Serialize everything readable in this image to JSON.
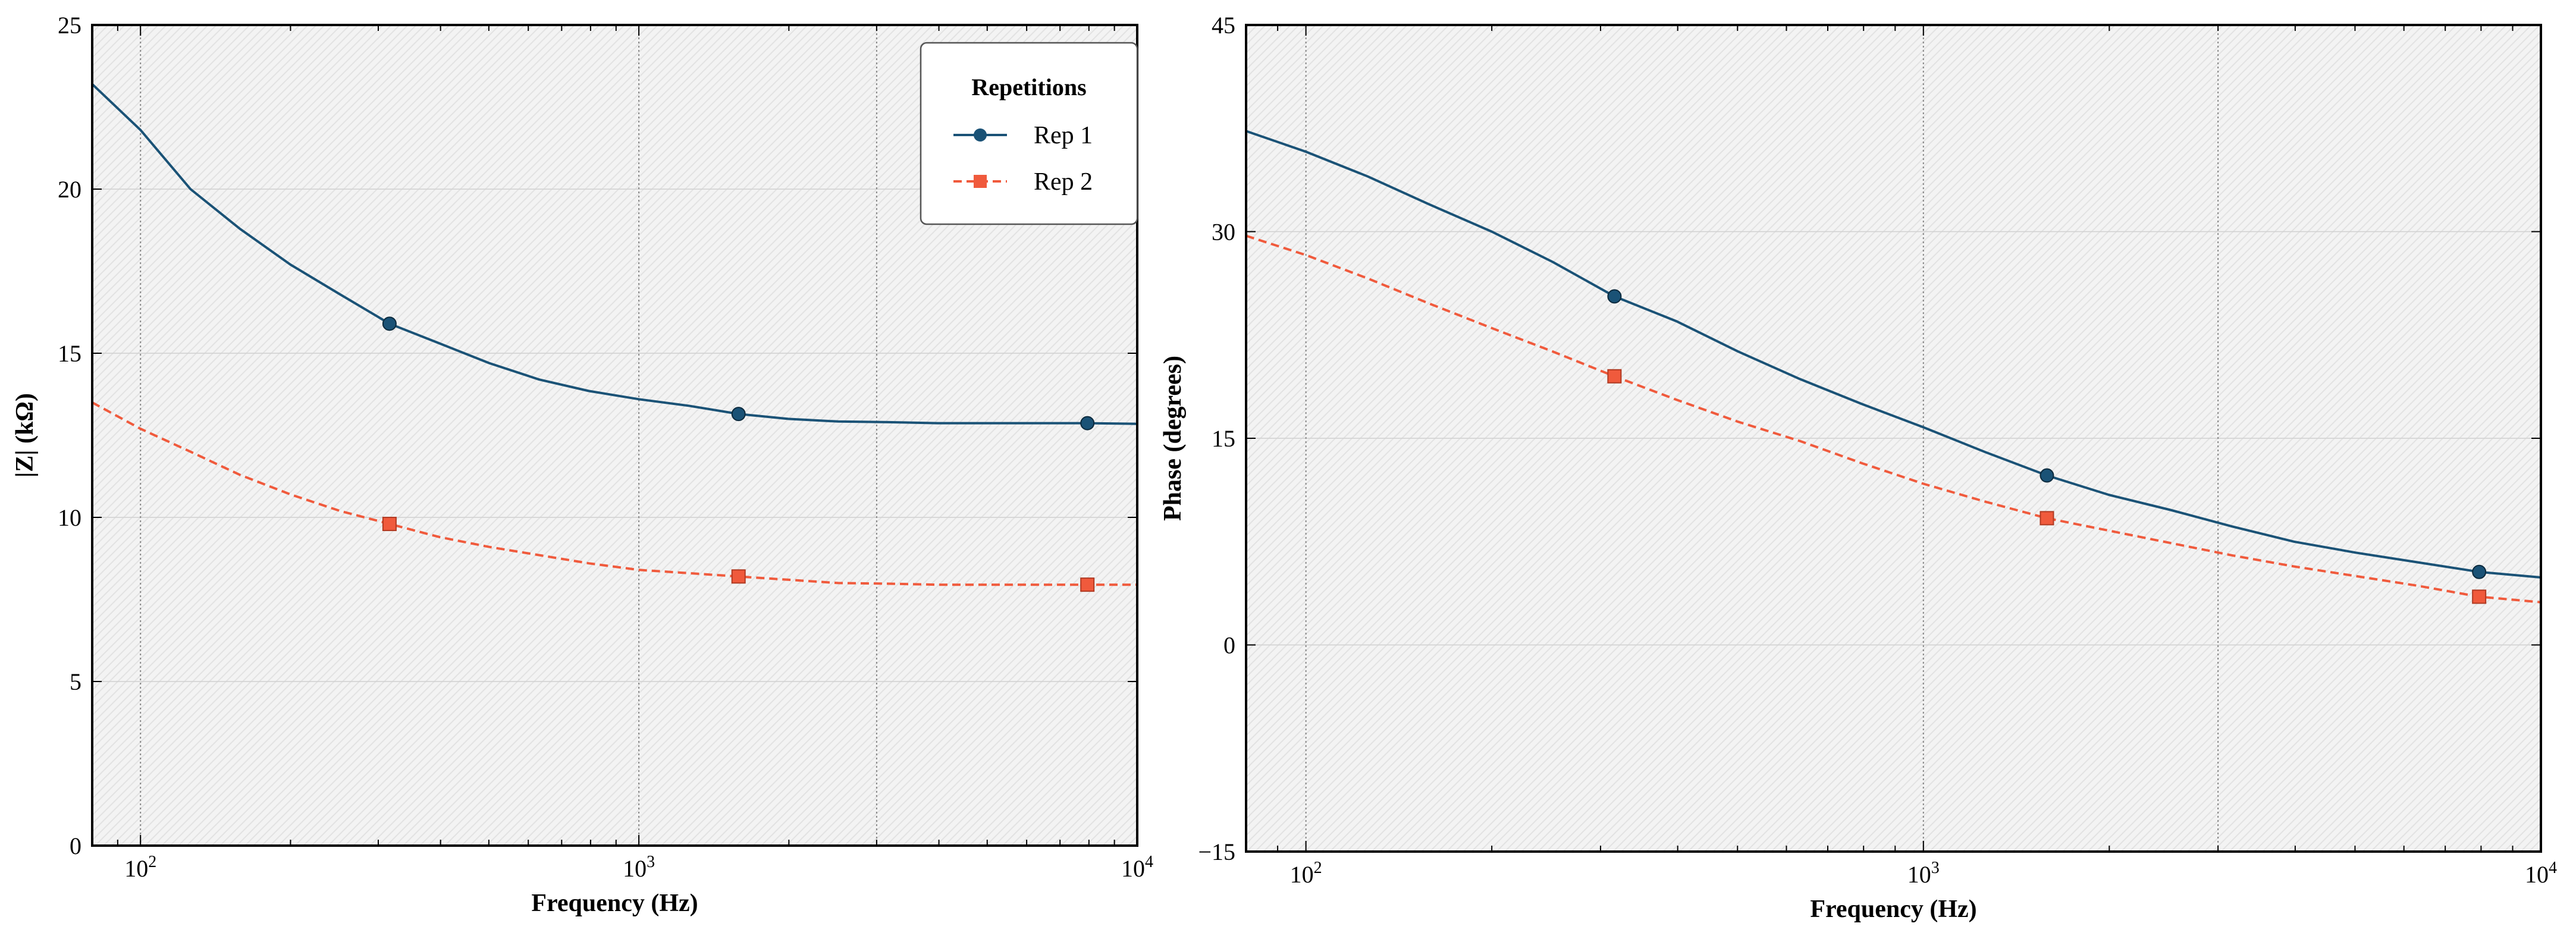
{
  "chart_data": [
    {
      "type": "line",
      "xscale": "log",
      "xlabel": "Frequency (Hz)",
      "ylabel": "|Z| (kΩ)",
      "xlim": [
        80,
        10000
      ],
      "ylim": [
        0,
        25
      ],
      "yticks": [
        "0",
        "5",
        "10",
        "15",
        "20",
        "25"
      ],
      "xticks": [
        {
          "base": "10",
          "exp": "2"
        },
        {
          "base": "10",
          "exp": "3"
        },
        {
          "base": "10",
          "exp": "4"
        }
      ],
      "vgrid": [
        100,
        1000,
        3000
      ],
      "series": [
        {
          "name": "Rep 1",
          "color": "#1a5276",
          "dash": "solid",
          "marker": "circle",
          "x": [
            80,
            100,
            126,
            158,
            200,
            251,
            316,
            398,
            501,
            631,
            794,
            1000,
            1259,
            1585,
            1995,
            2512,
            3162,
            3981,
            5012,
            6310,
            7943,
            10000
          ],
          "y": [
            23.2,
            21.8,
            20.0,
            18.8,
            17.7,
            16.8,
            15.9,
            15.3,
            14.7,
            14.2,
            13.85,
            13.6,
            13.4,
            13.15,
            13.0,
            12.92,
            12.9,
            12.87,
            12.87,
            12.87,
            12.87,
            12.85
          ],
          "markers_x": [
            316,
            1585,
            7943
          ],
          "markers_y": [
            15.9,
            13.15,
            12.87
          ]
        },
        {
          "name": "Rep 2",
          "color": "#f05a3c",
          "dash": "dashed",
          "marker": "square",
          "x": [
            80,
            100,
            126,
            158,
            200,
            251,
            316,
            398,
            501,
            631,
            794,
            1000,
            1259,
            1585,
            1995,
            2512,
            3162,
            3981,
            5012,
            6310,
            7943,
            10000
          ],
          "y": [
            13.5,
            12.7,
            12.0,
            11.3,
            10.7,
            10.2,
            9.8,
            9.4,
            9.1,
            8.85,
            8.6,
            8.4,
            8.3,
            8.2,
            8.1,
            8.0,
            7.98,
            7.95,
            7.95,
            7.95,
            7.95,
            7.95
          ],
          "markers_x": [
            316,
            1585,
            7943
          ],
          "markers_y": [
            9.8,
            8.2,
            7.95
          ]
        }
      ],
      "legend": {
        "title": "Repetitions",
        "placement": "top-right",
        "entries": [
          "Rep 1",
          "Rep 2"
        ]
      }
    },
    {
      "type": "line",
      "xscale": "log",
      "xlabel": "Frequency (Hz)",
      "ylabel": "Phase (degrees)",
      "xlim": [
        80,
        10000
      ],
      "ylim": [
        -15,
        45
      ],
      "yticks": [
        "−15",
        "0",
        "15",
        "30",
        "45"
      ],
      "xticks": [
        {
          "base": "10",
          "exp": "2"
        },
        {
          "base": "10",
          "exp": "3"
        },
        {
          "base": "10",
          "exp": "4"
        }
      ],
      "vgrid": [
        100,
        1000,
        3000
      ],
      "series": [
        {
          "name": "Rep 1",
          "color": "#1a5276",
          "dash": "solid",
          "marker": "circle",
          "x": [
            80,
            100,
            126,
            158,
            200,
            251,
            316,
            398,
            501,
            631,
            794,
            1000,
            1259,
            1585,
            1995,
            2512,
            3162,
            3981,
            5012,
            6310,
            7943,
            10000
          ],
          "y": [
            37.3,
            35.8,
            34.0,
            32.0,
            30.0,
            27.8,
            25.3,
            23.5,
            21.3,
            19.3,
            17.5,
            15.8,
            14.0,
            12.3,
            10.9,
            9.8,
            8.6,
            7.5,
            6.7,
            6.0,
            5.3,
            4.9
          ],
          "markers_x": [
            316,
            1585,
            7943
          ],
          "markers_y": [
            25.3,
            12.3,
            5.3
          ]
        },
        {
          "name": "Rep 2",
          "color": "#f05a3c",
          "dash": "dashed",
          "marker": "square",
          "x": [
            80,
            100,
            126,
            158,
            200,
            251,
            316,
            398,
            501,
            631,
            794,
            1000,
            1259,
            1585,
            1995,
            2512,
            3162,
            3981,
            5012,
            6310,
            7943,
            10000
          ],
          "y": [
            29.7,
            28.3,
            26.6,
            24.8,
            23.0,
            21.3,
            19.5,
            17.8,
            16.2,
            14.8,
            13.2,
            11.7,
            10.4,
            9.2,
            8.3,
            7.4,
            6.5,
            5.7,
            5.0,
            4.3,
            3.5,
            3.1
          ],
          "markers_x": [
            316,
            1585,
            7943
          ],
          "markers_y": [
            19.5,
            9.2,
            3.5
          ]
        }
      ]
    }
  ]
}
